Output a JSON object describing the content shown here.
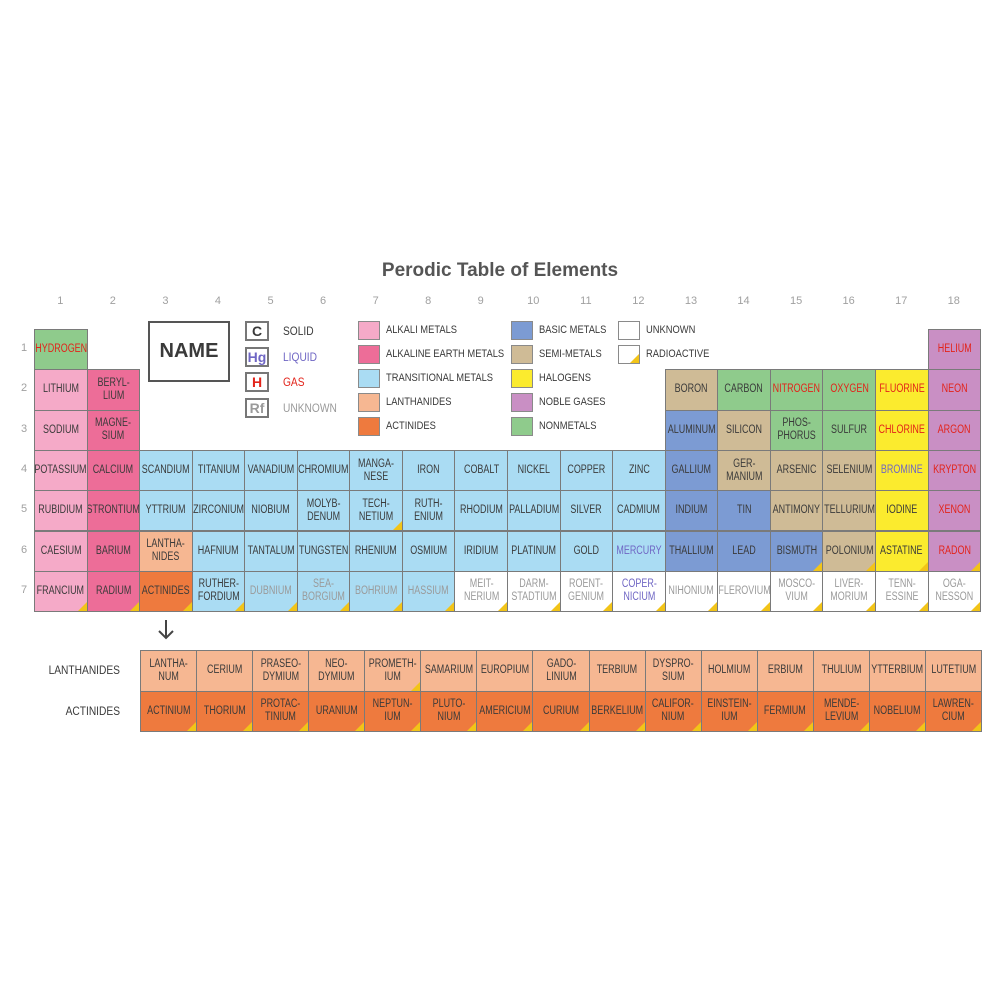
{
  "title": "Perodic Table of Elements",
  "group_numbers": [
    "1",
    "2",
    "3",
    "4",
    "5",
    "6",
    "7",
    "8",
    "9",
    "10",
    "11",
    "12",
    "13",
    "14",
    "15",
    "16",
    "17",
    "18"
  ],
  "key_name": "NAME",
  "states": [
    {
      "symbol": "C",
      "label": "SOLID",
      "color": "#3a3a3a"
    },
    {
      "symbol": "Hg",
      "label": "LIQUID",
      "color": "#6f66c4"
    },
    {
      "symbol": "H",
      "label": "GAS",
      "color": "#e2231a"
    },
    {
      "symbol": "Rf",
      "label": "UNKNOWN",
      "color": "#9a9a9a"
    }
  ],
  "categories": [
    {
      "label": "ALKALI METALS",
      "color": "#f5aac8"
    },
    {
      "label": "ALKALINE EARTH METALS",
      "color": "#ed6d98"
    },
    {
      "label": "TRANSITIONAL METALS",
      "color": "#aadcf3"
    },
    {
      "label": "LANTHANIDES",
      "color": "#f6b792"
    },
    {
      "label": "ACTINIDES",
      "color": "#ee7a3e"
    },
    {
      "label": "BASIC METALS",
      "color": "#7c9bd3"
    },
    {
      "label": "SEMI-METALS",
      "color": "#cfbb96"
    },
    {
      "label": "HALOGENS",
      "color": "#fbeb2e"
    },
    {
      "label": "NOBLE GASES",
      "color": "#c98fc4"
    },
    {
      "label": "NONMETALS",
      "color": "#8fcb8c"
    },
    {
      "label": "UNKNOWN",
      "color": "#ffffff"
    }
  ],
  "radioactive": {
    "label": "RADIOACTIVE",
    "color": "#f2c418"
  },
  "periods": [
    {
      "label": "1",
      "cells": [
        {
          "n": "HYDROGEN",
          "c": 9,
          "s": 2
        },
        null,
        null,
        null,
        null,
        null,
        null,
        null,
        null,
        null,
        null,
        null,
        null,
        null,
        null,
        null,
        null,
        {
          "n": "HELIUM",
          "c": 8,
          "s": 2
        }
      ]
    },
    {
      "label": "2",
      "cells": [
        {
          "n": "LITHIUM",
          "c": 0,
          "s": 0
        },
        {
          "n": "BERYL-\nLIUM",
          "c": 1,
          "s": 0
        },
        null,
        null,
        null,
        null,
        null,
        null,
        null,
        null,
        null,
        null,
        {
          "n": "BORON",
          "c": 6,
          "s": 0
        },
        {
          "n": "CARBON",
          "c": 9,
          "s": 0
        },
        {
          "n": "NITROGEN",
          "c": 9,
          "s": 2
        },
        {
          "n": "OXYGEN",
          "c": 9,
          "s": 2
        },
        {
          "n": "FLUORINE",
          "c": 7,
          "s": 2
        },
        {
          "n": "NEON",
          "c": 8,
          "s": 2
        }
      ]
    },
    {
      "label": "3",
      "cells": [
        {
          "n": "SODIUM",
          "c": 0,
          "s": 0
        },
        {
          "n": "MAGNE-\nSIUM",
          "c": 1,
          "s": 0
        },
        null,
        null,
        null,
        null,
        null,
        null,
        null,
        null,
        null,
        null,
        {
          "n": "ALUMINUM",
          "c": 5,
          "s": 0
        },
        {
          "n": "SILICON",
          "c": 6,
          "s": 0
        },
        {
          "n": "PHOS-\nPHORUS",
          "c": 9,
          "s": 0
        },
        {
          "n": "SULFUR",
          "c": 9,
          "s": 0
        },
        {
          "n": "CHLORINE",
          "c": 7,
          "s": 2
        },
        {
          "n": "ARGON",
          "c": 8,
          "s": 2
        }
      ]
    },
    {
      "label": "4",
      "cells": [
        {
          "n": "POTASSIUM",
          "c": 0,
          "s": 0
        },
        {
          "n": "CALCIUM",
          "c": 1,
          "s": 0
        },
        {
          "n": "SCANDIUM",
          "c": 2,
          "s": 0
        },
        {
          "n": "TITANIUM",
          "c": 2,
          "s": 0
        },
        {
          "n": "VANADIUM",
          "c": 2,
          "s": 0
        },
        {
          "n": "CHROMIUM",
          "c": 2,
          "s": 0
        },
        {
          "n": "MANGA-\nNESE",
          "c": 2,
          "s": 0
        },
        {
          "n": "IRON",
          "c": 2,
          "s": 0
        },
        {
          "n": "COBALT",
          "c": 2,
          "s": 0
        },
        {
          "n": "NICKEL",
          "c": 2,
          "s": 0
        },
        {
          "n": "COPPER",
          "c": 2,
          "s": 0
        },
        {
          "n": "ZINC",
          "c": 2,
          "s": 0
        },
        {
          "n": "GALLIUM",
          "c": 5,
          "s": 0
        },
        {
          "n": "GER-\nMANIUM",
          "c": 6,
          "s": 0
        },
        {
          "n": "ARSENIC",
          "c": 6,
          "s": 0
        },
        {
          "n": "SELENIUM",
          "c": 6,
          "s": 0
        },
        {
          "n": "BROMINE",
          "c": 7,
          "s": 1
        },
        {
          "n": "KRYPTON",
          "c": 8,
          "s": 2
        }
      ]
    },
    {
      "label": "5",
      "cells": [
        {
          "n": "RUBIDIUM",
          "c": 0,
          "s": 0
        },
        {
          "n": "STRONTIUM",
          "c": 1,
          "s": 0
        },
        {
          "n": "YTTRIUM",
          "c": 2,
          "s": 0
        },
        {
          "n": "ZIRCONIUM",
          "c": 2,
          "s": 0
        },
        {
          "n": "NIOBIUM",
          "c": 2,
          "s": 0
        },
        {
          "n": "MOLYB-\nDENUM",
          "c": 2,
          "s": 0
        },
        {
          "n": "TECH-\nNETIUM",
          "c": 2,
          "s": 0,
          "r": true
        },
        {
          "n": "RUTH-\nENIUM",
          "c": 2,
          "s": 0
        },
        {
          "n": "RHODIUM",
          "c": 2,
          "s": 0
        },
        {
          "n": "PALLADIUM",
          "c": 2,
          "s": 0
        },
        {
          "n": "SILVER",
          "c": 2,
          "s": 0
        },
        {
          "n": "CADMIUM",
          "c": 2,
          "s": 0
        },
        {
          "n": "INDIUM",
          "c": 5,
          "s": 0
        },
        {
          "n": "TIN",
          "c": 5,
          "s": 0
        },
        {
          "n": "ANTIMONY",
          "c": 6,
          "s": 0
        },
        {
          "n": "TELLURIUM",
          "c": 6,
          "s": 0
        },
        {
          "n": "IODINE",
          "c": 7,
          "s": 0
        },
        {
          "n": "XENON",
          "c": 8,
          "s": 2
        }
      ]
    },
    {
      "label": "6",
      "cells": [
        {
          "n": "CAESIUM",
          "c": 0,
          "s": 0
        },
        {
          "n": "BARIUM",
          "c": 1,
          "s": 0
        },
        {
          "n": "LANTHA-\nNIDES",
          "c": 3,
          "s": 0
        },
        {
          "n": "HAFNIUM",
          "c": 2,
          "s": 0
        },
        {
          "n": "TANTALUM",
          "c": 2,
          "s": 0
        },
        {
          "n": "TUNGSTEN",
          "c": 2,
          "s": 0
        },
        {
          "n": "RHENIUM",
          "c": 2,
          "s": 0
        },
        {
          "n": "OSMIUM",
          "c": 2,
          "s": 0
        },
        {
          "n": "IRIDIUM",
          "c": 2,
          "s": 0
        },
        {
          "n": "PLATINUM",
          "c": 2,
          "s": 0
        },
        {
          "n": "GOLD",
          "c": 2,
          "s": 0
        },
        {
          "n": "MERCURY",
          "c": 2,
          "s": 1
        },
        {
          "n": "THALLIUM",
          "c": 5,
          "s": 0
        },
        {
          "n": "LEAD",
          "c": 5,
          "s": 0
        },
        {
          "n": "BISMUTH",
          "c": 5,
          "s": 0,
          "r": true
        },
        {
          "n": "POLONIUM",
          "c": 6,
          "s": 0,
          "r": true
        },
        {
          "n": "ASTATINE",
          "c": 7,
          "s": 0,
          "r": true
        },
        {
          "n": "RADON",
          "c": 8,
          "s": 2,
          "r": true
        }
      ]
    },
    {
      "label": "7",
      "cells": [
        {
          "n": "FRANCIUM",
          "c": 0,
          "s": 0,
          "r": true
        },
        {
          "n": "RADIUM",
          "c": 1,
          "s": 0,
          "r": true
        },
        {
          "n": "ACTINIDES",
          "c": 4,
          "s": 0,
          "r": true
        },
        {
          "n": "RUTHER-\nFORDIUM",
          "c": 2,
          "s": 0,
          "r": true
        },
        {
          "n": "DUBNIUM",
          "c": 2,
          "s": 3,
          "r": true
        },
        {
          "n": "SEA-\nBORGIUM",
          "c": 2,
          "s": 3,
          "r": true
        },
        {
          "n": "BOHRIUM",
          "c": 2,
          "s": 3,
          "r": true
        },
        {
          "n": "HASSIUM",
          "c": 2,
          "s": 3,
          "r": true
        },
        {
          "n": "MEIT-\nNERIUM",
          "c": 10,
          "s": 3,
          "r": true
        },
        {
          "n": "DARM-\nSTADTIUM",
          "c": 10,
          "s": 3,
          "r": true
        },
        {
          "n": "ROENT-\nGENIUM",
          "c": 10,
          "s": 3,
          "r": true
        },
        {
          "n": "COPER-\nNICIUM",
          "c": 10,
          "s": 1,
          "r": true
        },
        {
          "n": "NIHONIUM",
          "c": 10,
          "s": 3,
          "r": true
        },
        {
          "n": "FLEROVIUM",
          "c": 10,
          "s": 3,
          "r": true
        },
        {
          "n": "MOSCO-\nVIUM",
          "c": 10,
          "s": 3,
          "r": true
        },
        {
          "n": "LIVER-\nMORIUM",
          "c": 10,
          "s": 3,
          "r": true
        },
        {
          "n": "TENN-\nESSINE",
          "c": 10,
          "s": 3,
          "r": true
        },
        {
          "n": "OGA-\nNESSON",
          "c": 10,
          "s": 3,
          "r": true
        }
      ]
    }
  ],
  "series_rows": [
    {
      "label": "LANTHANIDES",
      "cells": [
        {
          "n": "LANTHA-\nNUM",
          "c": 3,
          "s": 0
        },
        {
          "n": "CERIUM",
          "c": 3,
          "s": 0
        },
        {
          "n": "PRASEO-\nDYMIUM",
          "c": 3,
          "s": 0
        },
        {
          "n": "NEO-\nDYMIUM",
          "c": 3,
          "s": 0
        },
        {
          "n": "PROMETH-\nIUM",
          "c": 3,
          "s": 0,
          "r": true
        },
        {
          "n": "SAMARIUM",
          "c": 3,
          "s": 0
        },
        {
          "n": "EUROPIUM",
          "c": 3,
          "s": 0
        },
        {
          "n": "GADO-\nLINIUM",
          "c": 3,
          "s": 0
        },
        {
          "n": "TERBIUM",
          "c": 3,
          "s": 0
        },
        {
          "n": "DYSPRO-\nSIUM",
          "c": 3,
          "s": 0
        },
        {
          "n": "HOLMIUM",
          "c": 3,
          "s": 0
        },
        {
          "n": "ERBIUM",
          "c": 3,
          "s": 0
        },
        {
          "n": "THULIUM",
          "c": 3,
          "s": 0
        },
        {
          "n": "YTTERBIUM",
          "c": 3,
          "s": 0
        },
        {
          "n": "LUTETIUM",
          "c": 3,
          "s": 0
        }
      ]
    },
    {
      "label": "ACTINIDES",
      "cells": [
        {
          "n": "ACTINIUM",
          "c": 4,
          "s": 0,
          "r": true
        },
        {
          "n": "THORIUM",
          "c": 4,
          "s": 0,
          "r": true
        },
        {
          "n": "PROTAC-\nTINIUM",
          "c": 4,
          "s": 0,
          "r": true
        },
        {
          "n": "URANIUM",
          "c": 4,
          "s": 0,
          "r": true
        },
        {
          "n": "NEPTUN-\nIUM",
          "c": 4,
          "s": 0,
          "r": true
        },
        {
          "n": "PLUTO-\nNIUM",
          "c": 4,
          "s": 0,
          "r": true
        },
        {
          "n": "AMERICIUM",
          "c": 4,
          "s": 0,
          "r": true
        },
        {
          "n": "CURIUM",
          "c": 4,
          "s": 0,
          "r": true
        },
        {
          "n": "BERKELIUM",
          "c": 4,
          "s": 0,
          "r": true
        },
        {
          "n": "CALIFOR-\nNIUM",
          "c": 4,
          "s": 0,
          "r": true
        },
        {
          "n": "EINSTEIN-\nIUM",
          "c": 4,
          "s": 0,
          "r": true
        },
        {
          "n": "FERMIUM",
          "c": 4,
          "s": 0,
          "r": true
        },
        {
          "n": "MENDE-\nLEVIUM",
          "c": 4,
          "s": 0,
          "r": true
        },
        {
          "n": "NOBELIUM",
          "c": 4,
          "s": 0,
          "r": true
        },
        {
          "n": "LAWREN-\nCIUM",
          "c": 4,
          "s": 0,
          "r": true
        }
      ]
    }
  ]
}
